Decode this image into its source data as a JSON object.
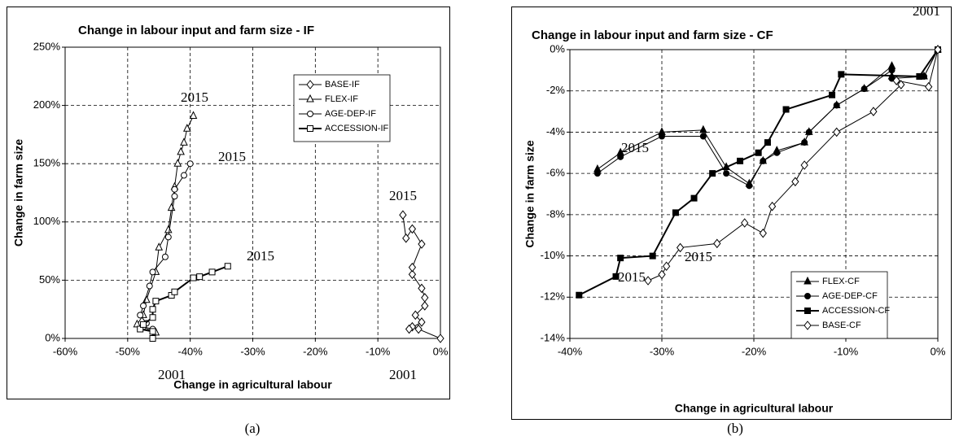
{
  "chart_data": [
    {
      "type": "line",
      "title": "Change in labour input and farm size - IF",
      "x_label": "Change in agricultural labour",
      "y_label": "Change in farm size",
      "xlim": [
        -60,
        0
      ],
      "ylim": [
        0,
        250
      ],
      "xticks": [
        {
          "value": -60,
          "label": "-60%"
        },
        {
          "value": -50,
          "label": "-50%"
        },
        {
          "value": -40,
          "label": "-40%"
        },
        {
          "value": -30,
          "label": "-30%"
        },
        {
          "value": -20,
          "label": "-20%"
        },
        {
          "value": -10,
          "label": "-10%"
        },
        {
          "value": 0,
          "label": "0%"
        }
      ],
      "yticks": [
        {
          "value": 0,
          "label": "0%"
        },
        {
          "value": 50,
          "label": "50%"
        },
        {
          "value": 100,
          "label": "100%"
        },
        {
          "value": 150,
          "label": "150%"
        },
        {
          "value": 200,
          "label": "200%"
        },
        {
          "value": 250,
          "label": "250%"
        }
      ],
      "grid": true,
      "legend": "upper right",
      "series": [
        {
          "name": "BASE-IF",
          "color": "#000000",
          "marker": "diamond",
          "filled": false,
          "linewidth": 1,
          "x": [
            0,
            -3.5,
            -4.5,
            -5,
            -3,
            -4,
            -2.5,
            -2.5,
            -3,
            -4.5,
            -4.5,
            -3,
            -4.5,
            -5.5,
            -6
          ],
          "y": [
            0,
            8,
            10,
            8,
            14,
            20,
            28,
            35,
            43,
            55,
            61,
            81,
            94,
            86,
            106
          ]
        },
        {
          "name": "FLEX-IF",
          "color": "#000000",
          "marker": "triangle",
          "filled": false,
          "linewidth": 1,
          "x": [
            -45.5,
            -48.5,
            -47.5,
            -47,
            -45.5,
            -45,
            -43.5,
            -43,
            -42.5,
            -42,
            -41.5,
            -41,
            -40.5,
            -39.5
          ],
          "y": [
            5,
            12,
            20,
            33,
            57,
            78,
            93,
            112,
            130,
            150,
            160,
            168,
            180,
            191
          ]
        },
        {
          "name": "AGE-DEP-IF",
          "color": "#000000",
          "marker": "circle",
          "filled": false,
          "linewidth": 1,
          "x": [
            -46,
            -47.5,
            -47,
            -48,
            -47.5,
            -46.5,
            -46,
            -44,
            -43.5,
            -42.5,
            -42.5,
            -41,
            -40
          ],
          "y": [
            8,
            10,
            13,
            20,
            28,
            45,
            57,
            70,
            87,
            122,
            128,
            140,
            150
          ]
        },
        {
          "name": "ACCESSION-IF",
          "color": "#000000",
          "marker": "square",
          "filled": false,
          "linewidth": 2,
          "x": [
            -46,
            -46,
            -48,
            -47.5,
            -46,
            -46,
            -45.5,
            -43,
            -42.5,
            -39.5,
            -38.5,
            -36.5,
            -34
          ],
          "y": [
            0,
            6,
            8,
            12,
            18,
            25,
            32,
            37,
            40,
            52,
            53,
            57,
            62
          ]
        }
      ],
      "annotations": [
        "2015",
        "2015",
        "2015",
        "2015",
        "2001",
        "2001"
      ]
    },
    {
      "type": "line",
      "title": "Change in labour input and farm size - CF",
      "x_label": "Change in agricultural labour",
      "y_label": "Change in farm size",
      "xlim": [
        -40,
        0
      ],
      "ylim": [
        -14,
        0
      ],
      "xticks": [
        {
          "value": -40,
          "label": "-40%"
        },
        {
          "value": -30,
          "label": "-30%"
        },
        {
          "value": -20,
          "label": "-20%"
        },
        {
          "value": -10,
          "label": "-10%"
        },
        {
          "value": 0,
          "label": "0%"
        }
      ],
      "yticks": [
        {
          "value": -14,
          "label": "-14%"
        },
        {
          "value": -12,
          "label": "-12%"
        },
        {
          "value": -10,
          "label": "-10%"
        },
        {
          "value": -8,
          "label": "-8%"
        },
        {
          "value": -6,
          "label": "-6%"
        },
        {
          "value": -4,
          "label": "-4%"
        },
        {
          "value": -2,
          "label": "-2%"
        },
        {
          "value": 0,
          "label": "0%"
        }
      ],
      "grid": true,
      "legend": "lower right",
      "series": [
        {
          "name": "FLEX-CF",
          "color": "#000000",
          "marker": "triangle",
          "filled": true,
          "linewidth": 1,
          "x": [
            -37,
            -34.5,
            -30,
            -25.5,
            -23,
            -20.5,
            -19,
            -17.5,
            -14.5,
            -14,
            -11,
            -8,
            -5,
            -5,
            -1.5,
            0
          ],
          "y": [
            -5.8,
            -5,
            -4,
            -3.9,
            -5.7,
            -6.5,
            -5.4,
            -4.9,
            -4.5,
            -4,
            -2.7,
            -1.9,
            -0.8,
            -1.3,
            -1.3,
            0
          ]
        },
        {
          "name": "AGE-DEP-CF",
          "color": "#000000",
          "marker": "circle",
          "filled": true,
          "linewidth": 1,
          "x": [
            -37,
            -34.5,
            -30,
            -25.5,
            -23,
            -20.5,
            -19,
            -17.5,
            -14.5,
            -14,
            -11,
            -8,
            -5,
            -5,
            -1.5,
            0
          ],
          "y": [
            -6,
            -5.2,
            -4.2,
            -4.2,
            -6,
            -6.6,
            -5.4,
            -5,
            -4.5,
            -4,
            -2.7,
            -1.9,
            -1,
            -1.4,
            -1.3,
            0
          ]
        },
        {
          "name": "ACCESSION-CF",
          "color": "#000000",
          "marker": "square",
          "filled": true,
          "linewidth": 2,
          "x": [
            -39,
            -35,
            -34.5,
            -31,
            -28.5,
            -26.5,
            -24.5,
            -21.5,
            -19.5,
            -18.5,
            -16.5,
            -11.5,
            -10.5,
            -2,
            0
          ],
          "y": [
            -11.9,
            -11,
            -10.1,
            -10,
            -7.9,
            -7.2,
            -6,
            -5.4,
            -5,
            -4.5,
            -2.9,
            -2.2,
            -1.2,
            -1.3,
            0
          ]
        },
        {
          "name": "BASE-CF",
          "color": "#000000",
          "marker": "diamond",
          "filled": false,
          "linewidth": 1,
          "x": [
            -31.5,
            -30,
            -29.5,
            -28,
            -24,
            -21,
            -19,
            -18,
            -15.5,
            -14.5,
            -11,
            -7,
            -4,
            -4.5,
            -1,
            0
          ],
          "y": [
            -11.2,
            -10.9,
            -10.5,
            -9.6,
            -9.4,
            -8.4,
            -8.9,
            -7.6,
            -6.4,
            -5.6,
            -4,
            -3,
            -1.7,
            -1.5,
            -1.8,
            0
          ]
        }
      ],
      "annotations": [
        "2001",
        "2015",
        "2015",
        "2015"
      ]
    }
  ],
  "captions": [
    "(a)",
    "(b)"
  ]
}
